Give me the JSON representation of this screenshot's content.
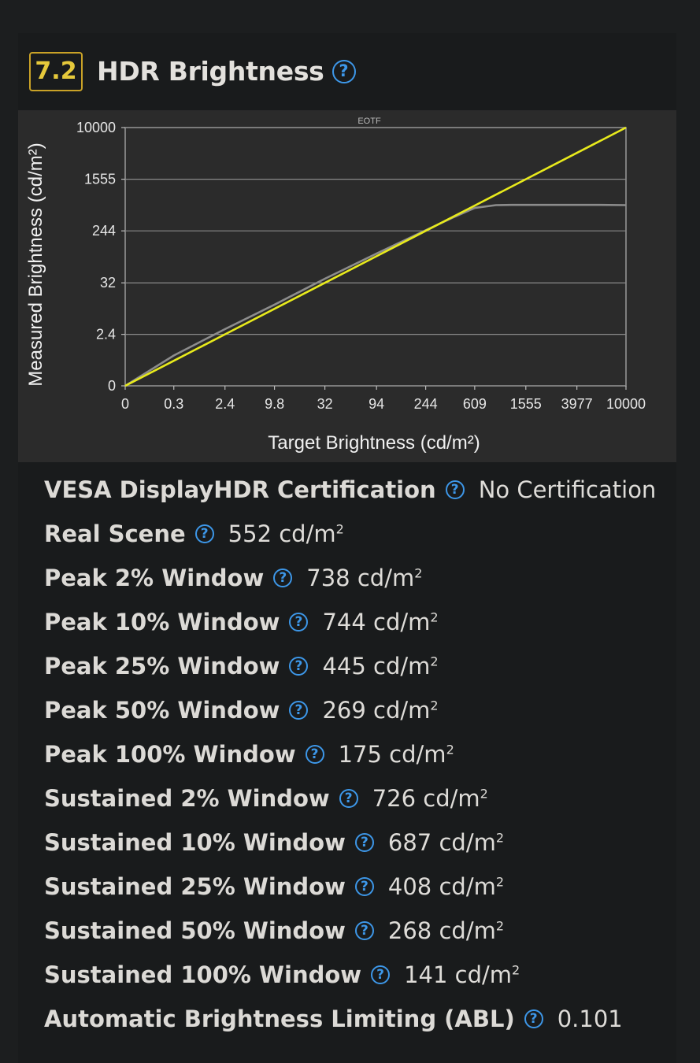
{
  "header": {
    "score": "7.2",
    "title": "HDR Brightness"
  },
  "chart_data": {
    "type": "line",
    "title": "EOTF",
    "xlabel": "Target Brightness (cd/m²)",
    "ylabel": "Measured Brightness (cd/m²)",
    "x_ticks": [
      "0",
      "0.3",
      "2.4",
      "9.8",
      "32",
      "94",
      "244",
      "609",
      "1555",
      "3977",
      "10000"
    ],
    "y_ticks": [
      "0",
      "2.4",
      "32",
      "244",
      "1555",
      "10000"
    ],
    "scale": "pq",
    "grid": true,
    "series": [
      {
        "color": "#8c8c8c",
        "x": [
          0,
          0.3,
          2.4,
          9.8,
          32,
          94,
          244,
          400,
          609,
          900,
          1200,
          1555,
          2500,
          3977,
          6000,
          10000
        ],
        "y": [
          0,
          0.5,
          3.3,
          12,
          38,
          104,
          250,
          390,
          560,
          620,
          625,
          625,
          624,
          625,
          625,
          620
        ]
      },
      {
        "color": "#e8ea1c",
        "x": [
          0,
          0.3,
          2.4,
          9.8,
          32,
          94,
          244,
          609,
          1555,
          3977,
          10000
        ],
        "y": [
          0,
          0.3,
          2.4,
          9.8,
          32,
          94,
          244,
          609,
          1555,
          3977,
          10000
        ]
      }
    ]
  },
  "metrics": [
    {
      "label": "VESA DisplayHDR Certification",
      "value": "No Certification",
      "unit": ""
    },
    {
      "label": "Real Scene",
      "value": "552 cd/m",
      "unit": "2"
    },
    {
      "label": "Peak 2% Window",
      "value": "738 cd/m",
      "unit": "2"
    },
    {
      "label": "Peak 10% Window",
      "value": "744 cd/m",
      "unit": "2"
    },
    {
      "label": "Peak 25% Window",
      "value": "445 cd/m",
      "unit": "2"
    },
    {
      "label": "Peak 50% Window",
      "value": "269 cd/m",
      "unit": "2"
    },
    {
      "label": "Peak 100% Window",
      "value": "175 cd/m",
      "unit": "2"
    },
    {
      "label": "Sustained 2% Window",
      "value": "726 cd/m",
      "unit": "2"
    },
    {
      "label": "Sustained 10% Window",
      "value": "687 cd/m",
      "unit": "2"
    },
    {
      "label": "Sustained 25% Window",
      "value": "408 cd/m",
      "unit": "2"
    },
    {
      "label": "Sustained 50% Window",
      "value": "268 cd/m",
      "unit": "2"
    },
    {
      "label": "Sustained 100% Window",
      "value": "141 cd/m",
      "unit": "2"
    },
    {
      "label": "Automatic Brightness Limiting (ABL)",
      "value": "0.101",
      "unit": ""
    }
  ],
  "icons": {
    "help": "question-circle-icon"
  },
  "colors": {
    "score_border": "#c9a227",
    "score_text": "#e6c93b",
    "help_blue": "#3d97e8"
  }
}
